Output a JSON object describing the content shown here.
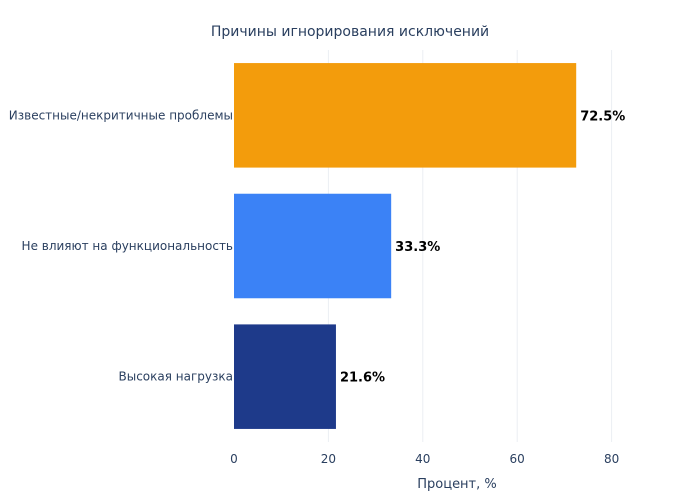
{
  "chart_data": {
    "type": "bar",
    "orientation": "horizontal",
    "title": "Причины игнорирования исключений",
    "xlabel": "Процент, %",
    "ylabel": "",
    "xlim": [
      0,
      86
    ],
    "x_ticks": [
      0,
      20,
      40,
      60,
      80
    ],
    "grid": true,
    "categories": [
      "Известные/некритичные проблемы",
      "Не влияют на функциональность",
      "Высокая нагрузка"
    ],
    "values": [
      72.5,
      33.3,
      21.6
    ],
    "data_labels": [
      "72.5%",
      "33.3%",
      "21.6%"
    ],
    "colors": [
      "#f39c0c",
      "#3b82f6",
      "#1e3a8a"
    ]
  }
}
